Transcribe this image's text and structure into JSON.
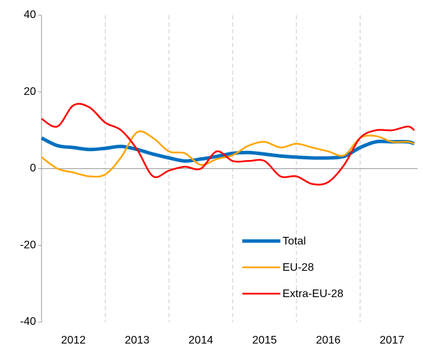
{
  "chart_data": {
    "type": "line",
    "x": [
      2012,
      2012.25,
      2012.5,
      2012.75,
      2013,
      2013.25,
      2013.5,
      2013.75,
      2014,
      2014.25,
      2014.5,
      2014.75,
      2015,
      2015.25,
      2015.5,
      2015.75,
      2016,
      2016.25,
      2016.5,
      2016.75,
      2017,
      2017.25,
      2017.5,
      2017.75,
      2017.85
    ],
    "series": [
      {
        "name": "Total",
        "color": "#0070c0",
        "values": [
          8,
          6,
          5.5,
          5,
          5.3,
          5.8,
          5,
          3.8,
          2.8,
          2,
          2.5,
          3.2,
          4,
          4.2,
          3.8,
          3.3,
          3,
          2.8,
          2.8,
          3.2,
          5.5,
          7,
          7,
          7,
          6.5
        ]
      },
      {
        "name": "EU-28",
        "color": "#ffa500",
        "values": [
          3,
          0,
          -1,
          -2,
          -1.5,
          3,
          9.5,
          8,
          4.5,
          4,
          1,
          2.5,
          3.5,
          6,
          7,
          5.5,
          6.5,
          5.5,
          4.5,
          3.5,
          8,
          8.5,
          7,
          7,
          6.5
        ]
      },
      {
        "name": "Extra-EU-28",
        "color": "#ff0000",
        "values": [
          13,
          11,
          16.5,
          16,
          12,
          10,
          5,
          -2,
          -0.5,
          0.5,
          0,
          4.5,
          2,
          2,
          2,
          -2,
          -2,
          -4,
          -3.5,
          1,
          8,
          10,
          10,
          11,
          10
        ]
      }
    ],
    "xlim": [
      2012,
      2017.9
    ],
    "xticks": [
      {
        "value": 2012.5,
        "label": "2012"
      },
      {
        "value": 2013.5,
        "label": "2013"
      },
      {
        "value": 2014.5,
        "label": "2014"
      },
      {
        "value": 2015.5,
        "label": "2015"
      },
      {
        "value": 2016.5,
        "label": "2016"
      },
      {
        "value": 2017.5,
        "label": "2017"
      }
    ],
    "xgrid": [
      2013,
      2014,
      2015,
      2016,
      2017
    ],
    "ylim": [
      -40,
      40
    ],
    "yticks": [
      -40,
      -20,
      0,
      20,
      40
    ],
    "legend": "lower right"
  }
}
